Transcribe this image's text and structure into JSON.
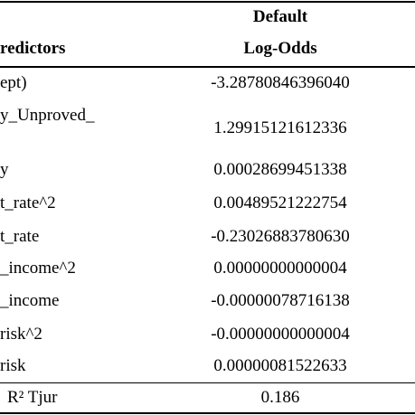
{
  "table": {
    "header": {
      "predictors": "redictors",
      "model": "Default",
      "measure": "Log-Odds"
    },
    "rows": [
      [
        "ept)",
        "-3.28780846396040"
      ],
      [
        "y_Unproved_",
        "1.29915121612336"
      ],
      [
        "y",
        "0.00028699451338"
      ],
      [
        "t_rate^2",
        "0.00489521222754"
      ],
      [
        "t_rate",
        "-0.23026883780630"
      ],
      [
        "_income^2",
        "0.00000000000004"
      ],
      [
        "_income",
        "-0.00000078716138"
      ],
      [
        "risk^2",
        "-0.00000000000004"
      ],
      [
        "risk",
        "0.00000081522633"
      ]
    ],
    "footer": [
      "R² Tjur",
      "0.186"
    ]
  }
}
